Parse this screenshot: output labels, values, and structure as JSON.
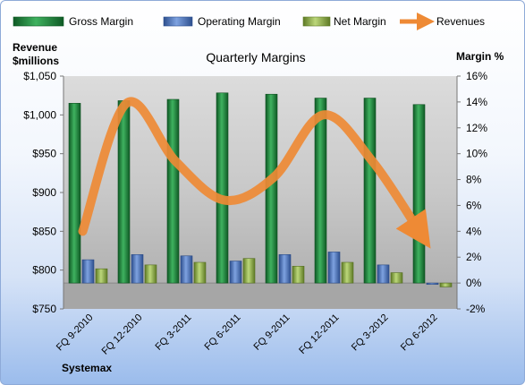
{
  "chart_data": {
    "type": "bar",
    "title": "Quarterly Margins",
    "y_left_label_line1": "Revenue",
    "y_left_label_line2": "$millions",
    "y_right_label": "Margin %",
    "footer_label": "Systemax",
    "categories": [
      "FQ 9-2010",
      "FQ 12-2010",
      "FQ 3-2011",
      "FQ 6-2011",
      "FQ 9-2011",
      "FQ 12-2011",
      "FQ 3-2012",
      "FQ 6-2012"
    ],
    "left_axis": {
      "min": 750,
      "max": 1050,
      "step": 50,
      "tick_labels": [
        "$750",
        "$800",
        "$850",
        "$900",
        "$950",
        "$1,000",
        "$1,050"
      ]
    },
    "right_axis": {
      "min": -2,
      "max": 16,
      "step": 2,
      "tick_labels": [
        "-2%",
        "0%",
        "2%",
        "4%",
        "6%",
        "8%",
        "10%",
        "12%",
        "14%",
        "16%"
      ]
    },
    "series": [
      {
        "name": "Gross Margin",
        "axis": "right",
        "color": "#1e8a3c",
        "values": [
          13.9,
          14.1,
          14.2,
          14.7,
          14.6,
          14.3,
          14.3,
          13.8
        ]
      },
      {
        "name": "Operating Margin",
        "axis": "right",
        "color": "#4f7ac7",
        "values": [
          1.8,
          2.2,
          2.1,
          1.7,
          2.2,
          2.4,
          1.4,
          -0.1
        ]
      },
      {
        "name": "Net Margin",
        "axis": "right",
        "color": "#8fb04a",
        "values": [
          1.1,
          1.4,
          1.6,
          1.9,
          1.3,
          1.6,
          0.8,
          -0.3
        ]
      },
      {
        "name": "Revenues",
        "axis": "left",
        "type": "line",
        "color": "#ee8a35",
        "values": [
          850,
          1015,
          940,
          890,
          920,
          1000,
          940,
          845
        ]
      }
    ],
    "grid": false,
    "legend": "top"
  }
}
